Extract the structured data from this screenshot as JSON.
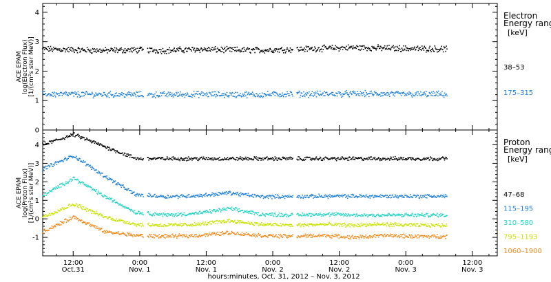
{
  "chart_data": [
    {
      "type": "scatter",
      "ylabel_lines": [
        "ACE EPAM",
        "log(Electron Flux)",
        "[1/(cm²s ster MeV)]"
      ],
      "ylim": [
        0,
        4.3
      ],
      "yticks": [
        0,
        1,
        2,
        3,
        4
      ],
      "legend": {
        "title_lines": [
          "Electron",
          "Energy range"
        ],
        "unit": "[keV]",
        "placement": "right"
      },
      "series": [
        {
          "name": "38–53",
          "color": "#000000",
          "values": [
            2.75,
            2.72,
            2.7,
            2.72,
            2.7,
            2.74,
            2.72,
            2.71,
            2.74,
            2.77,
            2.8,
            2.78,
            2.76,
            2.75
          ]
        },
        {
          "name": "175–315",
          "color": "#1e7fd6",
          "values": [
            1.22,
            1.21,
            1.21,
            1.2,
            1.2,
            1.21,
            1.2,
            1.2,
            1.22,
            1.22,
            1.23,
            1.22,
            1.21,
            1.21
          ]
        }
      ]
    },
    {
      "type": "scatter",
      "ylabel_lines": [
        "ACE EPAM",
        "log(Proton Flux)",
        "[1/(cm²s ster MeV)]"
      ],
      "ylim": [
        -2,
        4.8
      ],
      "yticks": [
        -1,
        0,
        1,
        2,
        3,
        4
      ],
      "legend": {
        "title_lines": [
          "Proton",
          "Energy range"
        ],
        "unit": "[keV]",
        "placement": "right"
      },
      "series": [
        {
          "name": "47–68",
          "color": "#000000",
          "values": [
            4.0,
            4.55,
            3.9,
            3.25,
            3.25,
            3.25,
            3.25,
            3.25,
            3.25,
            3.25,
            3.25,
            3.25,
            3.25,
            3.25
          ]
        },
        {
          "name": "115–195",
          "color": "#1e7fd6",
          "values": [
            2.7,
            3.4,
            2.3,
            1.3,
            1.2,
            1.25,
            1.4,
            1.2,
            1.2,
            1.22,
            1.22,
            1.22,
            1.22,
            1.22
          ]
        },
        {
          "name": "310–580",
          "color": "#22d4c4",
          "values": [
            1.25,
            2.2,
            1.2,
            0.35,
            0.2,
            0.3,
            0.55,
            0.25,
            0.2,
            0.25,
            0.2,
            0.2,
            0.2,
            0.2
          ]
        },
        {
          "name": "795–1193",
          "color": "#c8e400",
          "values": [
            0.1,
            0.8,
            0.1,
            -0.3,
            -0.35,
            -0.3,
            -0.1,
            -0.3,
            -0.35,
            -0.3,
            -0.35,
            -0.3,
            -0.35,
            -0.35
          ]
        },
        {
          "name": "1060–1900",
          "color": "#f08a1c",
          "values": [
            -0.7,
            0.1,
            -0.7,
            -0.9,
            -0.95,
            -0.9,
            -0.75,
            -0.9,
            -0.95,
            -0.9,
            -1.0,
            -0.9,
            -0.95,
            -0.95
          ]
        }
      ]
    }
  ],
  "x_axis": {
    "ticks": [
      {
        "hour": 12,
        "lines": [
          "12:00",
          "Oct.31"
        ]
      },
      {
        "hour": 24,
        "lines": [
          "0:00",
          "Nov. 1"
        ]
      },
      {
        "hour": 36,
        "lines": [
          "12:00",
          "Nov. 1"
        ]
      },
      {
        "hour": 48,
        "lines": [
          "0:00",
          "Nov. 2"
        ]
      },
      {
        "hour": 60,
        "lines": [
          "12:00",
          "Nov. 2"
        ]
      },
      {
        "hour": 72,
        "lines": [
          "0:00",
          "Nov. 3"
        ]
      },
      {
        "hour": 84,
        "lines": [
          "12:00",
          "Nov. 3"
        ]
      }
    ],
    "range_hours": [
      6.5,
      88.5
    ],
    "data_hours": [
      6.5,
      79.5
    ],
    "gap_hours": [
      [
        24.7,
        25.4
      ],
      [
        51.6,
        52.3
      ]
    ],
    "title": "hours:minutes, Oct. 31, 2012 – Nov.  3, 2012"
  }
}
